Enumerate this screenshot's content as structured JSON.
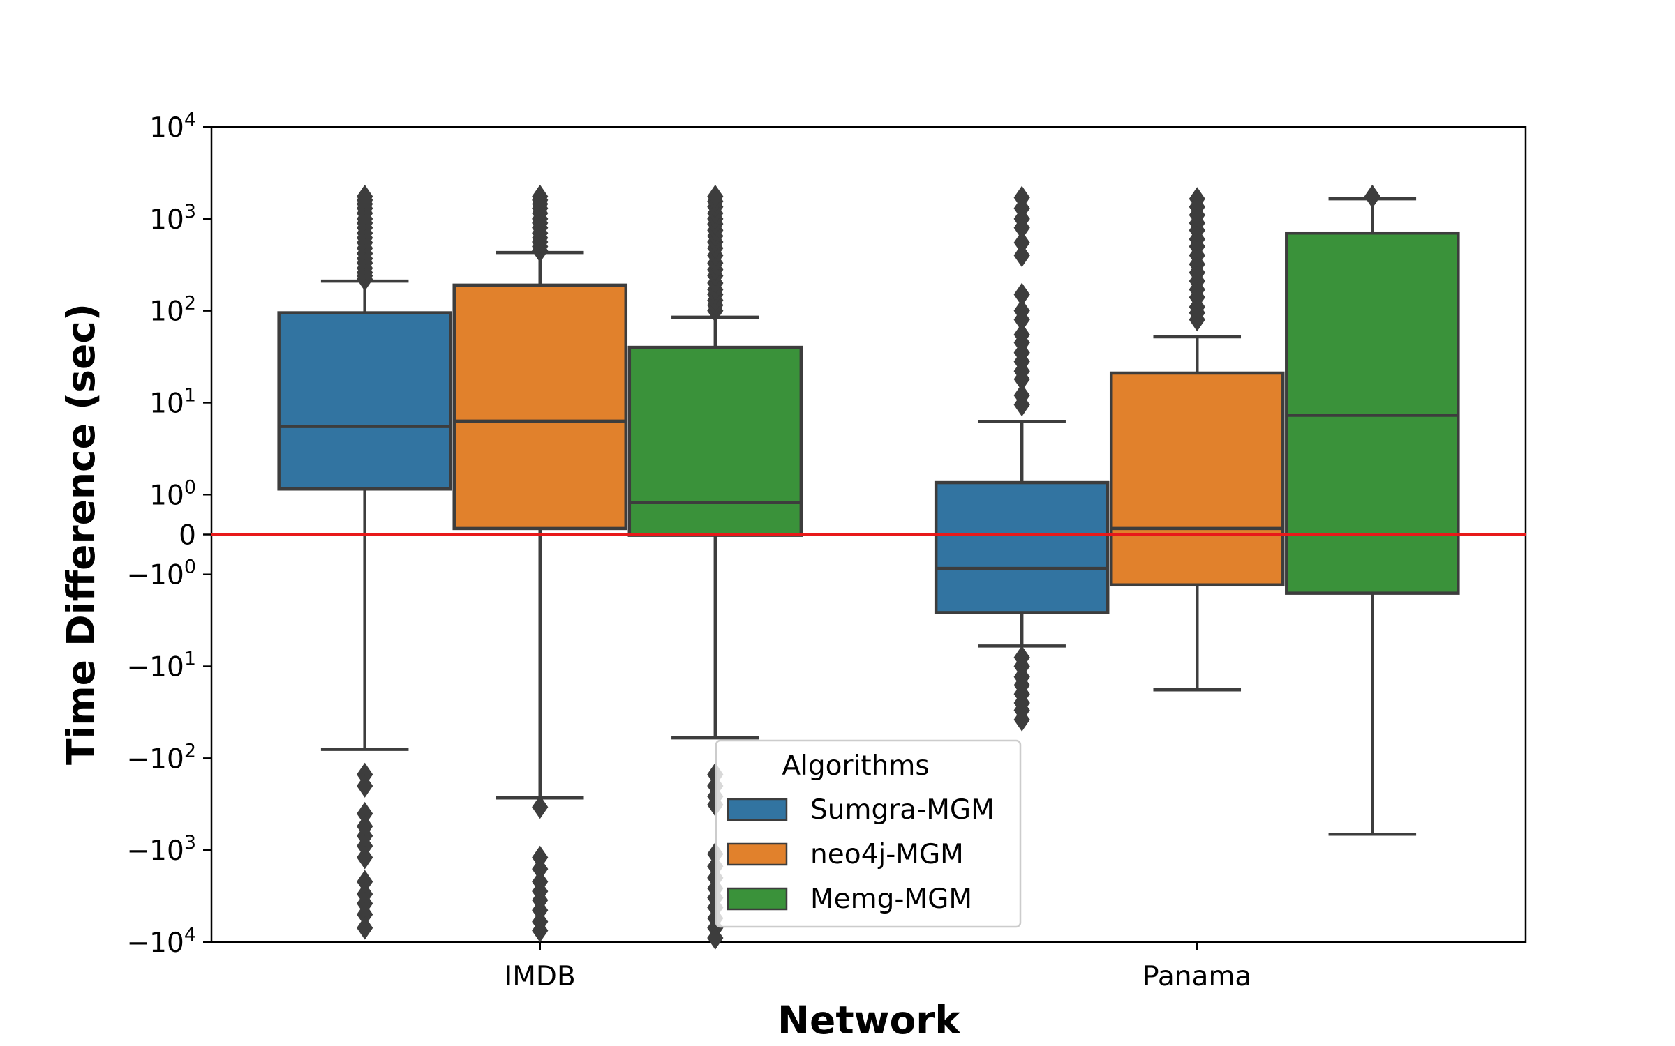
{
  "chart_data": {
    "type": "box",
    "title": "",
    "xlabel": "Network",
    "ylabel": "Time Difference (sec)",
    "y_scale": "symlog",
    "y_linthresh": 1,
    "ylim": [
      -10000,
      10000
    ],
    "grid": false,
    "legend": {
      "title": "Algorithms",
      "placement": "lower center"
    },
    "categories": [
      "IMDB",
      "Panama"
    ],
    "y_ticks": [
      {
        "value": 10000,
        "base": "10",
        "exp": "4"
      },
      {
        "value": 1000,
        "base": "10",
        "exp": "3"
      },
      {
        "value": 100,
        "base": "10",
        "exp": "2"
      },
      {
        "value": 10,
        "base": "10",
        "exp": "1"
      },
      {
        "value": 1,
        "base": "10",
        "exp": "0"
      },
      {
        "value": 0,
        "base": "0",
        "exp": ""
      },
      {
        "value": -1,
        "base": "−10",
        "exp": "0"
      },
      {
        "value": -10,
        "base": "−10",
        "exp": "1"
      },
      {
        "value": -100,
        "base": "−10",
        "exp": "2"
      },
      {
        "value": -1000,
        "base": "−10",
        "exp": "3"
      },
      {
        "value": -10000,
        "base": "−10",
        "exp": "4"
      }
    ],
    "reference_line": {
      "y": 0,
      "color": "#e8191a"
    },
    "series": [
      {
        "name": "Sumgra-MGM",
        "color": "#3274a1",
        "boxes": [
          {
            "category": "IMDB",
            "whisker_low": -80,
            "q1": 1.15,
            "median": 5.5,
            "q3": 95,
            "whisker_high": 210,
            "outliers": [
              220,
              240,
              260,
              290,
              330,
              370,
              420,
              480,
              550,
              620,
              700,
              800,
              900,
              1000,
              1150,
              1300,
              1450,
              1600,
              1750,
              -150,
              -200,
              -400,
              -550,
              -700,
              -900,
              -1200,
              -2200,
              -3000,
              -3800,
              -5000,
              -7000
            ]
          },
          {
            "category": "Panama",
            "whisker_low": -6,
            "q1": -2.6,
            "median": -0.85,
            "q3": 1.35,
            "whisker_high": 6.2,
            "outliers": [
              9.5,
              12,
              18,
              22,
              28,
              35,
              45,
              55,
              80,
              100,
              150,
              400,
              550,
              800,
              1000,
              1300,
              1700,
              -8,
              -10,
              -13,
              -16,
              -20,
              -25,
              -30,
              -38
            ]
          }
        ]
      },
      {
        "name": "neo4j-MGM",
        "color": "#e1812c",
        "boxes": [
          {
            "category": "IMDB",
            "whisker_low": -270,
            "q1": 0.15,
            "median": 6.3,
            "q3": 190,
            "whisker_high": 430,
            "outliers": [
              450,
              500,
              560,
              620,
              700,
              800,
              900,
              1000,
              1150,
              1300,
              1450,
              1600,
              1750,
              -340,
              -1200,
              -1600,
              -2200,
              -2800,
              -3500,
              -4500,
              -6000,
              -7500
            ]
          },
          {
            "category": "Panama",
            "whisker_low": -18,
            "q1": -1.3,
            "median": 0.15,
            "q3": 21,
            "whisker_high": 52,
            "outliers": [
              80,
              95,
              110,
              140,
              170,
              210,
              260,
              320,
              400,
              500,
              600,
              750,
              900,
              1100,
              1350,
              1650
            ]
          }
        ]
      },
      {
        "name": "Memg-MGM",
        "color": "#3a923a",
        "boxes": [
          {
            "category": "IMDB",
            "whisker_low": -60,
            "q1": -0.02,
            "median": 0.8,
            "q3": 40,
            "whisker_high": 85,
            "outliers": [
              100,
              115,
              130,
              150,
              170,
              200,
              240,
              280,
              330,
              400,
              480,
              560,
              650,
              750,
              880,
              1000,
              1150,
              1350,
              1550,
              1750,
              -150,
              -200,
              -260,
              -320,
              -1100,
              -1500,
              -2000,
              -2600,
              -3300,
              -4200,
              -5500,
              -7000,
              -9000
            ]
          },
          {
            "category": "Panama",
            "whisker_low": -670,
            "q1": -1.6,
            "median": 7.3,
            "q3": 700,
            "whisker_high": 1650,
            "outliers": [
              1750
            ]
          }
        ]
      }
    ]
  }
}
